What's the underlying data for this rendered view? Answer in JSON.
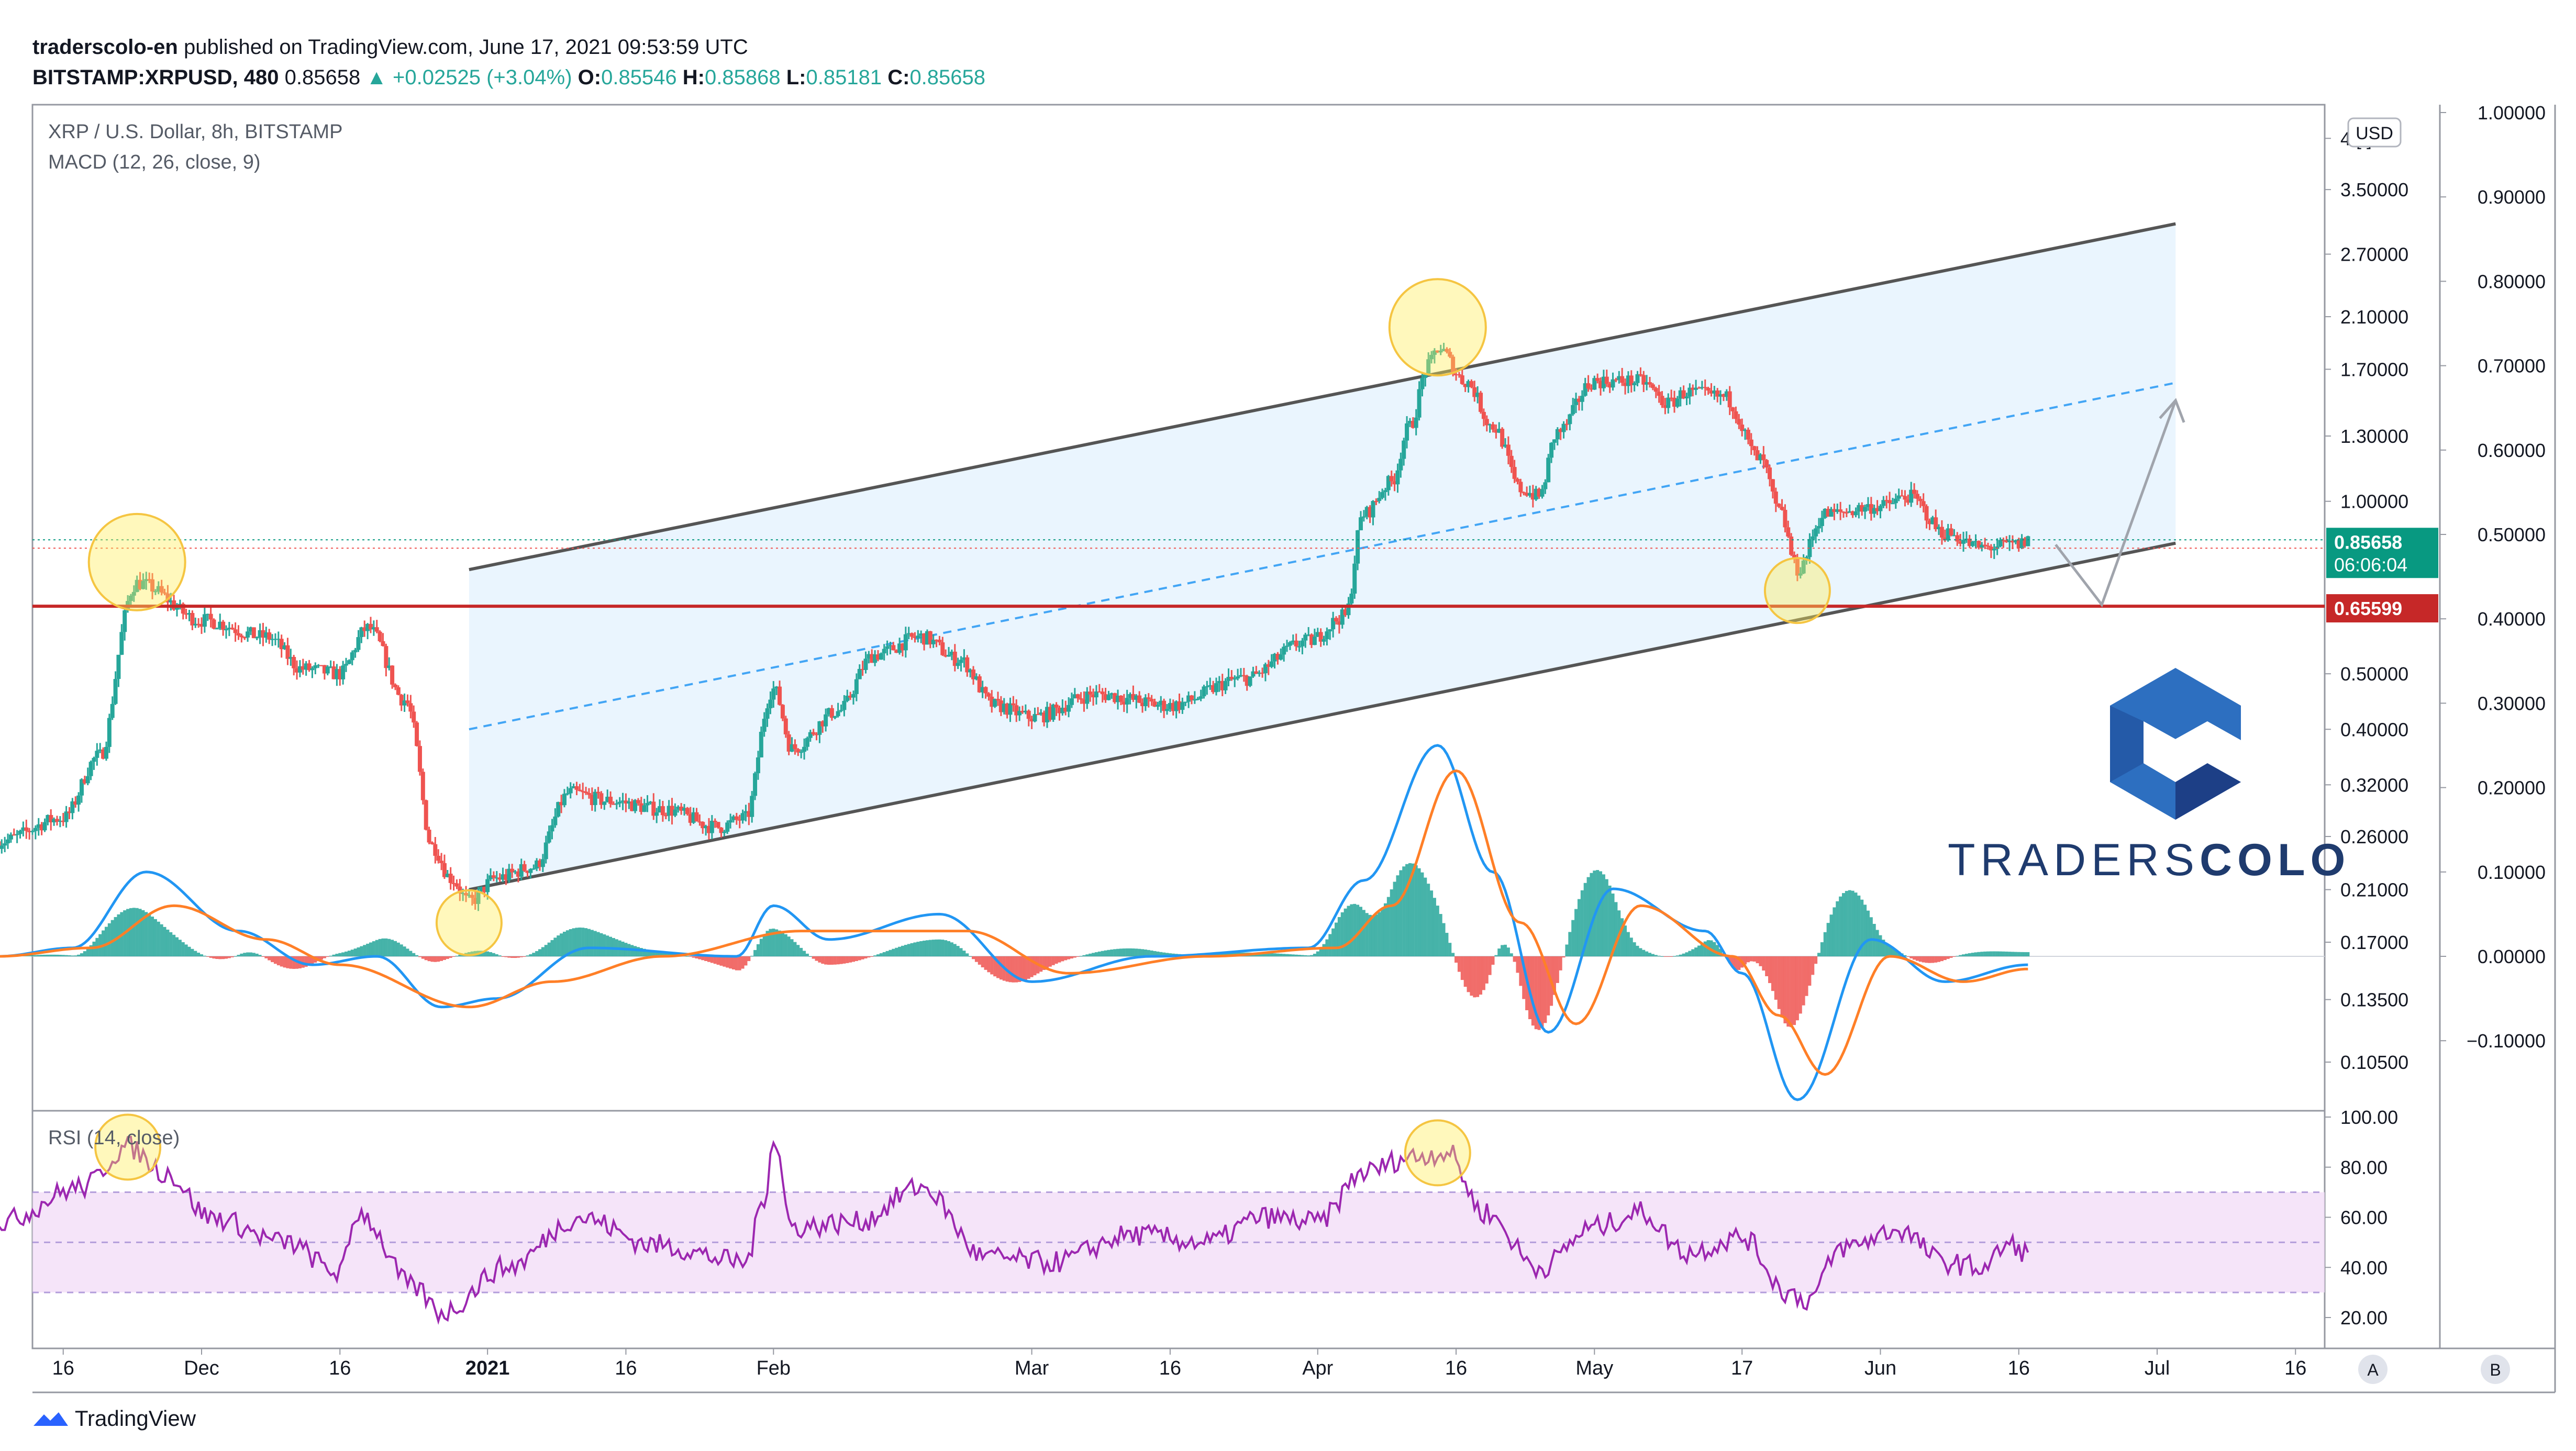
{
  "header": {
    "publisher": "traderscolo-en",
    "published_text": "published on TradingView.com, June 17, 2021 09:53:59 UTC",
    "symbol": "BITSTAMP:XRPUSD",
    "interval": "480",
    "last": "0.85658",
    "change": "▲ +0.02525 (+3.04%)",
    "o_label": "O:",
    "o_value": "0.85546",
    "h_label": "H:",
    "h_value": "0.85868",
    "l_label": "L:",
    "l_value": "0.85181",
    "c_label": "C:",
    "c_value": "0.85658"
  },
  "legend": {
    "title": "XRP / U.S. Dollar, 8h, BITSTAMP",
    "macd": "MACD (12, 26, close, 9)",
    "rsi": "RSI (14, close)"
  },
  "watermark": {
    "brand": "TRADERS",
    "brand_bold": "COLO",
    "colors": [
      "#2d6fc0",
      "#1d3f86"
    ]
  },
  "footer": {
    "brand": "TradingView"
  },
  "scale_buttons": {
    "a": "A",
    "b": "B",
    "currency": "USD"
  },
  "colors": {
    "up": "#26a69a",
    "down": "#ef5350",
    "support": "#c62828",
    "channel": "#555555",
    "channel_fill": "#e3f2fd",
    "midline": "#42a5f5",
    "macd": "#2196f3",
    "signal": "#ff7f27",
    "rsi": "#9c27b0",
    "rsi_band": "#f3ddf7",
    "highlight": "#ffee58",
    "label_last": "#089981",
    "label_support": "#c62828"
  },
  "chart_data": [
    {
      "type": "candlestick",
      "title": "XRP / U.S. Dollar, 8h, BITSTAMP",
      "price_scale": "log",
      "price_ticks": [
        "4.[ ]",
        "3.50000",
        "2.70000",
        "2.10000",
        "1.70000",
        "1.30000",
        "1.00000",
        "0.50000",
        "0.40000",
        "0.32000",
        "0.26000",
        "0.21000",
        "0.17000",
        "0.13500",
        "0.10500"
      ],
      "price_tick_values": [
        4.3,
        3.5,
        2.7,
        2.1,
        1.7,
        1.3,
        1.0,
        0.5,
        0.4,
        0.32,
        0.26,
        0.21,
        0.17,
        0.135,
        0.105
      ],
      "x_tick_labels": [
        "16",
        "Dec",
        "16",
        "2021",
        "16",
        "Feb",
        "Mar",
        "16",
        "Apr",
        "16",
        "May",
        "17",
        "Jun",
        "16",
        "Jul",
        "16"
      ],
      "x_tick_dates": [
        "2020-11-16",
        "2020-12-01",
        "2020-12-16",
        "2021-01-01",
        "2021-01-16",
        "2021-02-01",
        "2021-03-01",
        "2021-03-16",
        "2021-04-01",
        "2021-04-16",
        "2021-05-01",
        "2021-05-17",
        "2021-06-01",
        "2021-06-16",
        "2021-07-01",
        "2021-07-16"
      ],
      "key_closes": [
        [
          "2020-11-09",
          0.255
        ],
        [
          "2020-11-16",
          0.28
        ],
        [
          "2020-11-20",
          0.36
        ],
        [
          "2020-11-24",
          0.72
        ],
        [
          "2020-12-01",
          0.62
        ],
        [
          "2020-12-08",
          0.58
        ],
        [
          "2020-12-12",
          0.51
        ],
        [
          "2020-12-16",
          0.5
        ],
        [
          "2020-12-19",
          0.6
        ],
        [
          "2020-12-23",
          0.45
        ],
        [
          "2020-12-26",
          0.25
        ],
        [
          "2020-12-28",
          0.22
        ],
        [
          "2020-12-30",
          0.2
        ],
        [
          "2021-01-02",
          0.22
        ],
        [
          "2021-01-06",
          0.23
        ],
        [
          "2021-01-10",
          0.31
        ],
        [
          "2021-01-14",
          0.3
        ],
        [
          "2021-01-20",
          0.29
        ],
        [
          "2021-01-26",
          0.27
        ],
        [
          "2021-01-29",
          0.28
        ],
        [
          "2021-02-01",
          0.47
        ],
        [
          "2021-02-03",
          0.37
        ],
        [
          "2021-02-08",
          0.43
        ],
        [
          "2021-02-12",
          0.54
        ],
        [
          "2021-02-17",
          0.58
        ],
        [
          "2021-02-21",
          0.53
        ],
        [
          "2021-02-25",
          0.44
        ],
        [
          "2021-03-01",
          0.42
        ],
        [
          "2021-03-08",
          0.46
        ],
        [
          "2021-03-16",
          0.44
        ],
        [
          "2021-03-24",
          0.49
        ],
        [
          "2021-03-31",
          0.57
        ],
        [
          "2021-04-04",
          0.63
        ],
        [
          "2021-04-06",
          0.95
        ],
        [
          "2021-04-09",
          1.08
        ],
        [
          "2021-04-11",
          1.35
        ],
        [
          "2021-04-13",
          1.72
        ],
        [
          "2021-04-14",
          1.85
        ],
        [
          "2021-04-17",
          1.62
        ],
        [
          "2021-04-20",
          1.35
        ],
        [
          "2021-04-23",
          1.05
        ],
        [
          "2021-04-25",
          1.02
        ],
        [
          "2021-04-27",
          1.32
        ],
        [
          "2021-05-01",
          1.62
        ],
        [
          "2021-05-06",
          1.62
        ],
        [
          "2021-05-09",
          1.48
        ],
        [
          "2021-05-11",
          1.55
        ],
        [
          "2021-05-15",
          1.52
        ],
        [
          "2021-05-19",
          1.18
        ],
        [
          "2021-05-21",
          0.96
        ],
        [
          "2021-05-23",
          0.76
        ],
        [
          "2021-05-26",
          0.95
        ],
        [
          "2021-06-01",
          0.98
        ],
        [
          "2021-06-04",
          1.02
        ],
        [
          "2021-06-08",
          0.88
        ],
        [
          "2021-06-12",
          0.83
        ],
        [
          "2021-06-16",
          0.84
        ],
        [
          "2021-06-17",
          0.85658
        ]
      ],
      "last_price_label": "0.85658",
      "countdown_label": "06:06:04",
      "support_level": 0.65599,
      "support_label": "0.65599",
      "ascending_channel": {
        "start_date": "2020-12-30",
        "end_date": "2021-07-03",
        "lower_start": 0.21,
        "lower_end": 0.845,
        "upper_start": 0.76,
        "upper_end": 3.05,
        "midline_start": 0.4,
        "midline_end": 1.61
      },
      "projection_path": [
        [
          "2021-06-20",
          0.84
        ],
        [
          "2021-06-25",
          0.66
        ],
        [
          "2021-07-03",
          1.5
        ]
      ],
      "highlight_dates": [
        "2020-11-24",
        "2020-12-30",
        "2021-04-14",
        "2021-05-23"
      ]
    },
    {
      "type": "line",
      "title": "MACD (12, 26, close, 9)",
      "axis_ticks": [
        "1.00000",
        "0.90000",
        "0.80000",
        "0.70000",
        "0.60000",
        "0.50000",
        "0.40000",
        "0.30000",
        "0.20000",
        "0.10000",
        "0.00000",
        "−0.10000"
      ],
      "axis_tick_values": [
        1.0,
        0.9,
        0.8,
        0.7,
        0.6,
        0.5,
        0.4,
        0.3,
        0.2,
        0.1,
        0.0,
        -0.1
      ],
      "macd_keypoints": [
        [
          "2020-11-09",
          0.0
        ],
        [
          "2020-11-17",
          0.01
        ],
        [
          "2020-11-25",
          0.1
        ],
        [
          "2020-12-05",
          0.03
        ],
        [
          "2020-12-13",
          -0.01
        ],
        [
          "2020-12-20",
          0.0
        ],
        [
          "2020-12-27",
          -0.06
        ],
        [
          "2021-01-02",
          -0.05
        ],
        [
          "2021-01-12",
          0.01
        ],
        [
          "2021-01-28",
          0.0
        ],
        [
          "2021-02-01",
          0.06
        ],
        [
          "2021-02-07",
          0.02
        ],
        [
          "2021-02-19",
          0.05
        ],
        [
          "2021-03-01",
          -0.03
        ],
        [
          "2021-03-14",
          0.0
        ],
        [
          "2021-03-31",
          0.01
        ],
        [
          "2021-04-06",
          0.09
        ],
        [
          "2021-04-14",
          0.25
        ],
        [
          "2021-04-20",
          0.1
        ],
        [
          "2021-04-26",
          -0.09
        ],
        [
          "2021-05-03",
          0.08
        ],
        [
          "2021-05-13",
          0.03
        ],
        [
          "2021-05-17",
          -0.02
        ],
        [
          "2021-05-23",
          -0.17
        ],
        [
          "2021-05-31",
          0.02
        ],
        [
          "2021-06-08",
          -0.03
        ],
        [
          "2021-06-17",
          -0.01
        ]
      ],
      "signal_keypoints": [
        [
          "2020-11-09",
          0.0
        ],
        [
          "2020-11-19",
          0.01
        ],
        [
          "2020-11-28",
          0.06
        ],
        [
          "2020-12-08",
          0.02
        ],
        [
          "2020-12-16",
          -0.01
        ],
        [
          "2020-12-30",
          -0.06
        ],
        [
          "2021-01-08",
          -0.03
        ],
        [
          "2021-01-20",
          0.0
        ],
        [
          "2021-02-04",
          0.03
        ],
        [
          "2021-02-22",
          0.03
        ],
        [
          "2021-03-05",
          -0.02
        ],
        [
          "2021-03-20",
          0.0
        ],
        [
          "2021-04-03",
          0.01
        ],
        [
          "2021-04-09",
          0.06
        ],
        [
          "2021-04-16",
          0.22
        ],
        [
          "2021-04-23",
          0.04
        ],
        [
          "2021-04-29",
          -0.08
        ],
        [
          "2021-05-06",
          0.06
        ],
        [
          "2021-05-16",
          0.0
        ],
        [
          "2021-05-21",
          -0.07
        ],
        [
          "2021-05-26",
          -0.14
        ],
        [
          "2021-06-02",
          0.0
        ],
        [
          "2021-06-10",
          -0.03
        ],
        [
          "2021-06-17",
          -0.015
        ]
      ]
    },
    {
      "type": "line",
      "title": "RSI (14, close)",
      "ylim": [
        20,
        100
      ],
      "axis_ticks": [
        "100.00",
        "80.00",
        "60.00",
        "40.00",
        "20.00"
      ],
      "axis_tick_values": [
        100,
        80,
        60,
        40,
        20
      ],
      "bands": [
        30,
        50,
        70
      ],
      "keypoints": [
        [
          "2020-11-09",
          58
        ],
        [
          "2020-11-18",
          72
        ],
        [
          "2020-11-23",
          88
        ],
        [
          "2020-11-27",
          78
        ],
        [
          "2020-12-02",
          60
        ],
        [
          "2020-12-10",
          50
        ],
        [
          "2020-12-16",
          38
        ],
        [
          "2020-12-18",
          62
        ],
        [
          "2020-12-24",
          32
        ],
        [
          "2020-12-27",
          22
        ],
        [
          "2021-01-03",
          40
        ],
        [
          "2021-01-11",
          60
        ],
        [
          "2021-01-19",
          49
        ],
        [
          "2021-01-29",
          42
        ],
        [
          "2021-01-31",
          68
        ],
        [
          "2021-02-01",
          92
        ],
        [
          "2021-02-03",
          56
        ],
        [
          "2021-02-10",
          58
        ],
        [
          "2021-02-17",
          72
        ],
        [
          "2021-02-24",
          44
        ],
        [
          "2021-03-03",
          42
        ],
        [
          "2021-03-12",
          53
        ],
        [
          "2021-03-20",
          50
        ],
        [
          "2021-03-26",
          60
        ],
        [
          "2021-04-01",
          58
        ],
        [
          "2021-04-06",
          78
        ],
        [
          "2021-04-11",
          84
        ],
        [
          "2021-04-15",
          86
        ],
        [
          "2021-04-19",
          62
        ],
        [
          "2021-04-25",
          40
        ],
        [
          "2021-05-01",
          56
        ],
        [
          "2021-05-06",
          62
        ],
        [
          "2021-05-11",
          46
        ],
        [
          "2021-05-17",
          52
        ],
        [
          "2021-05-22",
          30
        ],
        [
          "2021-05-24",
          27
        ],
        [
          "2021-05-28",
          48
        ],
        [
          "2021-06-03",
          55
        ],
        [
          "2021-06-08",
          42
        ],
        [
          "2021-06-12",
          40
        ],
        [
          "2021-06-15",
          49
        ],
        [
          "2021-06-17",
          46
        ]
      ],
      "highlight_dates": [
        "2020-11-23",
        "2021-04-14"
      ]
    }
  ]
}
